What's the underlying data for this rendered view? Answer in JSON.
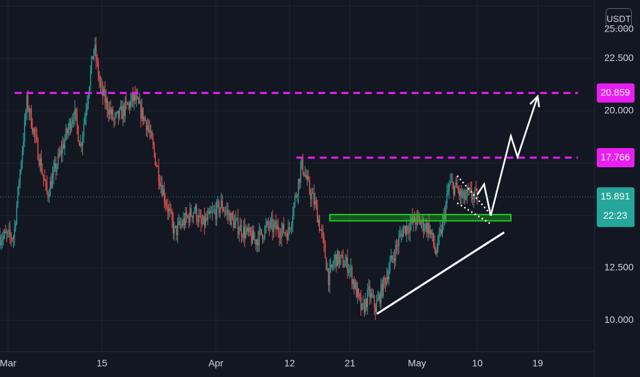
{
  "chart_data": {
    "type": "candlestick",
    "currency_label": "USDT",
    "x_axis": {
      "tick_labels": [
        "Mar",
        "15",
        "Apr",
        "12",
        "21",
        "May",
        "10",
        "19"
      ],
      "tick_days": [
        1,
        15,
        32,
        43,
        52,
        62,
        71,
        80
      ]
    },
    "y_axis": {
      "range": [
        8.5,
        25.3
      ],
      "tick_labels": [
        "10.000",
        "12.500",
        "20.000",
        "22.500"
      ],
      "tick_values": [
        10.0,
        12.5,
        20.0,
        22.5
      ],
      "partial_top_label": "25.000"
    },
    "price_labels": [
      {
        "text": "20.859",
        "value": 20.859,
        "color": "#e91ef0"
      },
      {
        "text": "17.766",
        "value": 17.766,
        "color": "#e91ef0"
      }
    ],
    "last_price": {
      "text": "15.891",
      "value": 15.891,
      "color": "#26a69a"
    },
    "countdown": {
      "text": "22:23"
    },
    "key_prices": [
      {
        "day": 2,
        "value": 14.0
      },
      {
        "day": 4,
        "value": 20.5
      },
      {
        "day": 7,
        "value": 16.0
      },
      {
        "day": 11,
        "value": 20.0
      },
      {
        "day": 12,
        "value": 18.3
      },
      {
        "day": 14,
        "value": 23.1
      },
      {
        "day": 15,
        "value": 21.0
      },
      {
        "day": 17,
        "value": 19.5
      },
      {
        "day": 20,
        "value": 20.6
      },
      {
        "day": 22,
        "value": 19.3
      },
      {
        "day": 24,
        "value": 16.5
      },
      {
        "day": 26,
        "value": 14.2
      },
      {
        "day": 29,
        "value": 15.3
      },
      {
        "day": 30,
        "value": 14.5
      },
      {
        "day": 33,
        "value": 15.5
      },
      {
        "day": 35,
        "value": 14.6
      },
      {
        "day": 38,
        "value": 13.8
      },
      {
        "day": 40,
        "value": 14.5
      },
      {
        "day": 43,
        "value": 14.2
      },
      {
        "day": 45,
        "value": 17.5
      },
      {
        "day": 46,
        "value": 16.3
      },
      {
        "day": 47,
        "value": 15.5
      },
      {
        "day": 48,
        "value": 14.0
      },
      {
        "day": 49,
        "value": 12.0
      },
      {
        "day": 50,
        "value": 13.0
      },
      {
        "day": 52,
        "value": 12.6
      },
      {
        "day": 54,
        "value": 10.4
      },
      {
        "day": 55,
        "value": 11.3
      },
      {
        "day": 56,
        "value": 10.6
      },
      {
        "day": 58,
        "value": 12.5
      },
      {
        "day": 60,
        "value": 14.3
      },
      {
        "day": 62,
        "value": 14.8
      },
      {
        "day": 64,
        "value": 14.4
      },
      {
        "day": 65,
        "value": 13.2
      },
      {
        "day": 66,
        "value": 14.6
      },
      {
        "day": 67,
        "value": 16.5
      },
      {
        "day": 68,
        "value": 16.3
      },
      {
        "day": 69,
        "value": 15.8
      },
      {
        "day": 70,
        "value": 16.0
      },
      {
        "day": 71,
        "value": 15.891
      }
    ],
    "annotations": {
      "resistance_lines": [
        {
          "value": 20.859,
          "from_day": 2,
          "to_day": 86,
          "color": "#e91ef0",
          "style": "dashed"
        },
        {
          "value": 17.766,
          "from_day": 44,
          "to_day": 86,
          "color": "#e91ef0",
          "style": "dashed"
        }
      ],
      "support_zone": {
        "from_day": 49,
        "to_day": 76,
        "low": 14.75,
        "high": 15.05,
        "color": "#1fc21f"
      },
      "trendline": {
        "from": {
          "day": 56,
          "value": 10.3
        },
        "to": {
          "day": 75,
          "value": 14.2
        },
        "color": "#ffffff"
      },
      "wedge": {
        "upper": [
          {
            "day": 68,
            "value": 16.9
          },
          {
            "day": 73,
            "value": 15.05
          }
        ],
        "lower": [
          {
            "day": 68,
            "value": 15.6
          },
          {
            "day": 73,
            "value": 14.6
          }
        ],
        "style": "dotted",
        "color": "#ffffff"
      },
      "projection_path": [
        {
          "day": 71,
          "value": 16.0
        },
        {
          "day": 72,
          "value": 16.5
        },
        {
          "day": 73,
          "value": 15.0
        },
        {
          "day": 76,
          "value": 18.8
        },
        {
          "day": 77,
          "value": 17.8
        },
        {
          "day": 80,
          "value": 20.7
        }
      ]
    }
  }
}
